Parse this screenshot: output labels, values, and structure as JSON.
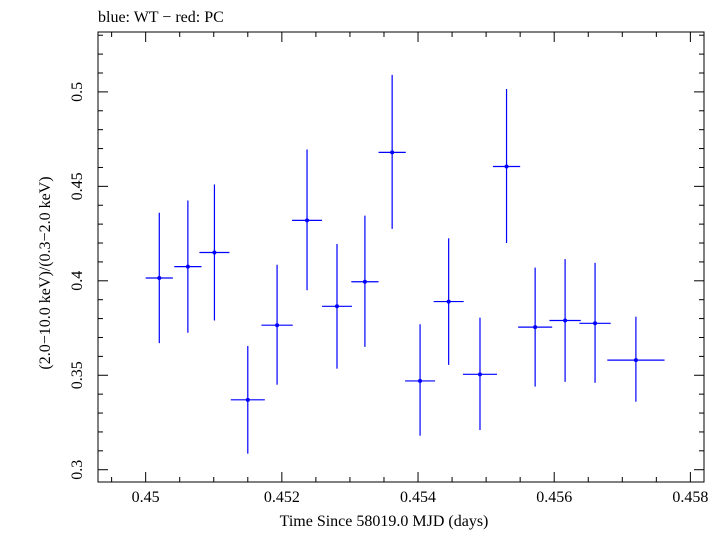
{
  "chart_data": {
    "type": "scatter",
    "title": "blue: WT − red: PC",
    "xlabel": "Time Since 58019.0 MJD (days)",
    "ylabel": "(2.0−10.0 keV)/(0.3−2.0 keV)",
    "xlim": [
      0.4493,
      0.4582
    ],
    "ylim": [
      0.2935,
      0.5317
    ],
    "x_ticks": [
      0.45,
      0.452,
      0.454,
      0.456,
      0.458
    ],
    "x_tick_labels": [
      "0.45",
      "0.452",
      "0.454",
      "0.456",
      "0.458"
    ],
    "y_ticks": [
      0.3,
      0.35,
      0.4,
      0.45,
      0.5
    ],
    "y_tick_labels": [
      "0.3",
      "0.35",
      "0.4",
      "0.45",
      "0.5"
    ],
    "grid": false,
    "series": [
      {
        "name": "WT",
        "color": "#0000ff",
        "points": [
          {
            "x": 0.4502,
            "y": 0.4015,
            "xerr": 0.0002,
            "yerr_low": 0.0345,
            "yerr_high": 0.0345
          },
          {
            "x": 0.45062,
            "y": 0.4075,
            "xerr": 0.0002,
            "yerr_low": 0.035,
            "yerr_high": 0.035
          },
          {
            "x": 0.45101,
            "y": 0.415,
            "xerr": 0.00022,
            "yerr_low": 0.036,
            "yerr_high": 0.036
          },
          {
            "x": 0.4515,
            "y": 0.337,
            "xerr": 0.00025,
            "yerr_low": 0.0285,
            "yerr_high": 0.0285
          },
          {
            "x": 0.45193,
            "y": 0.3765,
            "xerr": 0.00023,
            "yerr_low": 0.0315,
            "yerr_high": 0.032
          },
          {
            "x": 0.45237,
            "y": 0.432,
            "xerr": 0.00022,
            "yerr_low": 0.037,
            "yerr_high": 0.0375
          },
          {
            "x": 0.45281,
            "y": 0.3865,
            "xerr": 0.00022,
            "yerr_low": 0.033,
            "yerr_high": 0.033
          },
          {
            "x": 0.45322,
            "y": 0.3995,
            "xerr": 0.0002,
            "yerr_low": 0.0345,
            "yerr_high": 0.035
          },
          {
            "x": 0.45362,
            "y": 0.468,
            "xerr": 0.0002,
            "yerr_low": 0.0405,
            "yerr_high": 0.041
          },
          {
            "x": 0.45403,
            "y": 0.347,
            "xerr": 0.00022,
            "yerr_low": 0.029,
            "yerr_high": 0.03
          },
          {
            "x": 0.45445,
            "y": 0.389,
            "xerr": 0.00022,
            "yerr_low": 0.0335,
            "yerr_high": 0.0335
          },
          {
            "x": 0.45491,
            "y": 0.3505,
            "xerr": 0.00025,
            "yerr_low": 0.0295,
            "yerr_high": 0.03
          },
          {
            "x": 0.4553,
            "y": 0.4605,
            "xerr": 0.0002,
            "yerr_low": 0.0405,
            "yerr_high": 0.041
          },
          {
            "x": 0.45572,
            "y": 0.3755,
            "xerr": 0.00025,
            "yerr_low": 0.0315,
            "yerr_high": 0.0315
          },
          {
            "x": 0.45616,
            "y": 0.379,
            "xerr": 0.00023,
            "yerr_low": 0.0325,
            "yerr_high": 0.0325
          },
          {
            "x": 0.4566,
            "y": 0.3775,
            "xerr": 0.00023,
            "yerr_low": 0.0315,
            "yerr_high": 0.032
          },
          {
            "x": 0.4572,
            "y": 0.358,
            "xerr": 0.00042,
            "yerr_low": 0.022,
            "yerr_high": 0.023
          }
        ]
      }
    ]
  }
}
